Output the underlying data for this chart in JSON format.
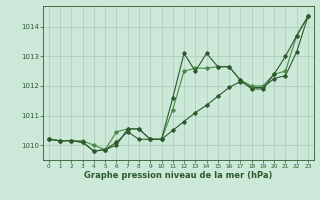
{
  "background_color": "#cce8d8",
  "grid_color": "#aaccbb",
  "line_color_dark": "#2d5a2d",
  "line_color_medium": "#4a8a4a",
  "xlabel": "Graphe pression niveau de la mer (hPa)",
  "xlim": [
    -0.5,
    23.5
  ],
  "ylim": [
    1009.5,
    1014.7
  ],
  "yticks": [
    1010,
    1011,
    1012,
    1013,
    1014
  ],
  "xticks": [
    0,
    1,
    2,
    3,
    4,
    5,
    6,
    7,
    8,
    9,
    10,
    11,
    12,
    13,
    14,
    15,
    16,
    17,
    18,
    19,
    20,
    21,
    22,
    23
  ],
  "series1": [
    1010.2,
    1010.15,
    1010.15,
    1010.1,
    1009.8,
    1009.85,
    1010.0,
    1010.55,
    1010.55,
    1010.2,
    1010.2,
    1011.6,
    1013.1,
    1012.5,
    1013.1,
    1012.65,
    1012.65,
    1012.2,
    1011.9,
    1011.9,
    1012.4,
    1013.0,
    1013.7,
    1014.35
  ],
  "series2": [
    1010.2,
    1010.15,
    1010.15,
    1010.15,
    1010.0,
    1009.85,
    1010.45,
    1010.55,
    1010.55,
    1010.2,
    1010.2,
    1011.2,
    1012.5,
    1012.6,
    1012.6,
    1012.65,
    1012.65,
    1012.2,
    1012.0,
    1012.0,
    1012.4,
    1012.5,
    1013.7,
    1014.35
  ],
  "series3": [
    1010.2,
    1010.15,
    1010.15,
    1010.1,
    1009.8,
    1009.85,
    1010.1,
    1010.45,
    1010.2,
    1010.2,
    1010.2,
    1010.5,
    1010.8,
    1011.1,
    1011.35,
    1011.65,
    1011.95,
    1012.15,
    1011.95,
    1011.95,
    1012.25,
    1012.35,
    1013.15,
    1014.35
  ]
}
